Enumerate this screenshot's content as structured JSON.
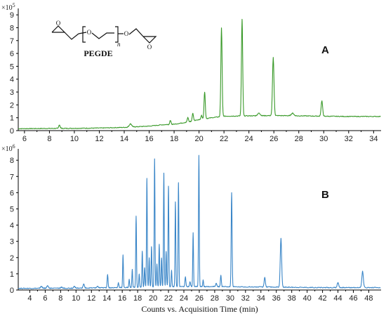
{
  "chart_data": [
    {
      "type": "line",
      "panel_label": "A",
      "y_multiplier": "×10",
      "y_exponent": "5",
      "xlim": [
        5.5,
        34.6
      ],
      "ylim": [
        0,
        9.5
      ],
      "x_ticks": [
        6,
        8,
        10,
        12,
        14,
        16,
        18,
        20,
        22,
        24,
        26,
        28,
        30,
        32,
        34
      ],
      "y_ticks": [
        0,
        1,
        2,
        3,
        4,
        5,
        6,
        7,
        8,
        9
      ],
      "color": "#3a9a2a",
      "baseline": [
        [
          5.5,
          0.15
        ],
        [
          8,
          0.17
        ],
        [
          10,
          0.18
        ],
        [
          12,
          0.2
        ],
        [
          14,
          0.25
        ],
        [
          16,
          0.35
        ],
        [
          17,
          0.45
        ],
        [
          18,
          0.5
        ],
        [
          19,
          0.65
        ],
        [
          20,
          0.85
        ],
        [
          21,
          1.0
        ],
        [
          22,
          1.12
        ],
        [
          24,
          1.15
        ],
        [
          26,
          1.17
        ],
        [
          28,
          1.15
        ],
        [
          30,
          1.12
        ],
        [
          32,
          1.1
        ],
        [
          34.6,
          1.1
        ]
      ],
      "peaks": [
        {
          "x": 8.8,
          "height": 0.25,
          "width": 0.06
        },
        {
          "x": 14.5,
          "height": 0.25,
          "width": 0.1
        },
        {
          "x": 17.7,
          "height": 0.3,
          "width": 0.05
        },
        {
          "x": 19.1,
          "height": 0.35,
          "width": 0.05
        },
        {
          "x": 19.5,
          "height": 0.6,
          "width": 0.05
        },
        {
          "x": 20.2,
          "height": 0.3,
          "width": 0.05
        },
        {
          "x": 20.45,
          "height": 2.1,
          "width": 0.05
        },
        {
          "x": 21.8,
          "height": 6.9,
          "width": 0.05
        },
        {
          "x": 23.45,
          "height": 7.5,
          "width": 0.05
        },
        {
          "x": 24.8,
          "height": 0.2,
          "width": 0.1
        },
        {
          "x": 25.95,
          "height": 4.5,
          "width": 0.06
        },
        {
          "x": 27.5,
          "height": 0.2,
          "width": 0.1
        },
        {
          "x": 29.85,
          "height": 1.2,
          "width": 0.06
        }
      ],
      "structure": {
        "label": "PEGDE",
        "atom": "O",
        "repeat": "n"
      }
    },
    {
      "type": "line",
      "panel_label": "B",
      "y_multiplier": "×10",
      "y_exponent": "6",
      "xlim": [
        2.5,
        49.6
      ],
      "ylim": [
        0,
        8.7
      ],
      "x_ticks": [
        4,
        6,
        8,
        10,
        12,
        14,
        16,
        18,
        20,
        22,
        24,
        26,
        28,
        30,
        32,
        34,
        36,
        38,
        40,
        42,
        44,
        46,
        48
      ],
      "y_ticks": [
        0,
        1,
        2,
        3,
        4,
        5,
        6,
        7,
        8
      ],
      "xlabel": "Counts vs. Acquisition Time (min)",
      "color": "#3a86c8",
      "baseline": [
        [
          2.5,
          0.1
        ],
        [
          10,
          0.12
        ],
        [
          16,
          0.15
        ],
        [
          20,
          0.2
        ],
        [
          26,
          0.22
        ],
        [
          30,
          0.2
        ],
        [
          36,
          0.18
        ],
        [
          42,
          0.15
        ],
        [
          49.6,
          0.15
        ]
      ],
      "peaks": [
        {
          "x": 5.5,
          "height": 0.12,
          "width": 0.1
        },
        {
          "x": 6.3,
          "height": 0.15,
          "width": 0.1
        },
        {
          "x": 8.1,
          "height": 0.05,
          "width": 0.1
        },
        {
          "x": 9.8,
          "height": 0.1,
          "width": 0.1
        },
        {
          "x": 11.0,
          "height": 0.25,
          "width": 0.08
        },
        {
          "x": 12.8,
          "height": 0.08,
          "width": 0.1
        },
        {
          "x": 14.1,
          "height": 0.8,
          "width": 0.06
        },
        {
          "x": 15.5,
          "height": 0.3,
          "width": 0.06
        },
        {
          "x": 16.1,
          "height": 2.0,
          "width": 0.05
        },
        {
          "x": 16.9,
          "height": 0.5,
          "width": 0.05
        },
        {
          "x": 17.3,
          "height": 1.1,
          "width": 0.05
        },
        {
          "x": 17.8,
          "height": 4.4,
          "width": 0.05
        },
        {
          "x": 18.2,
          "height": 0.8,
          "width": 0.05
        },
        {
          "x": 18.6,
          "height": 2.2,
          "width": 0.05
        },
        {
          "x": 18.9,
          "height": 1.2,
          "width": 0.05
        },
        {
          "x": 19.2,
          "height": 6.7,
          "width": 0.05
        },
        {
          "x": 19.5,
          "height": 1.8,
          "width": 0.05
        },
        {
          "x": 19.8,
          "height": 2.5,
          "width": 0.05
        },
        {
          "x": 20.2,
          "height": 7.9,
          "width": 0.05
        },
        {
          "x": 20.5,
          "height": 1.4,
          "width": 0.05
        },
        {
          "x": 20.8,
          "height": 2.6,
          "width": 0.05
        },
        {
          "x": 21.1,
          "height": 1.8,
          "width": 0.05
        },
        {
          "x": 21.4,
          "height": 7.0,
          "width": 0.05
        },
        {
          "x": 21.7,
          "height": 2.2,
          "width": 0.05
        },
        {
          "x": 22.0,
          "height": 6.2,
          "width": 0.05
        },
        {
          "x": 22.4,
          "height": 1.0,
          "width": 0.05
        },
        {
          "x": 22.9,
          "height": 5.2,
          "width": 0.05
        },
        {
          "x": 23.3,
          "height": 6.4,
          "width": 0.05
        },
        {
          "x": 24.2,
          "height": 0.6,
          "width": 0.06
        },
        {
          "x": 24.8,
          "height": 0.3,
          "width": 0.06
        },
        {
          "x": 25.2,
          "height": 3.3,
          "width": 0.05
        },
        {
          "x": 25.95,
          "height": 8.1,
          "width": 0.05
        },
        {
          "x": 26.5,
          "height": 0.4,
          "width": 0.05
        },
        {
          "x": 28.2,
          "height": 0.2,
          "width": 0.08
        },
        {
          "x": 28.8,
          "height": 0.7,
          "width": 0.06
        },
        {
          "x": 30.2,
          "height": 5.8,
          "width": 0.06
        },
        {
          "x": 34.5,
          "height": 0.6,
          "width": 0.08
        },
        {
          "x": 36.6,
          "height": 3.0,
          "width": 0.09
        },
        {
          "x": 44.0,
          "height": 0.3,
          "width": 0.1
        },
        {
          "x": 47.2,
          "height": 1.0,
          "width": 0.1
        }
      ]
    }
  ]
}
